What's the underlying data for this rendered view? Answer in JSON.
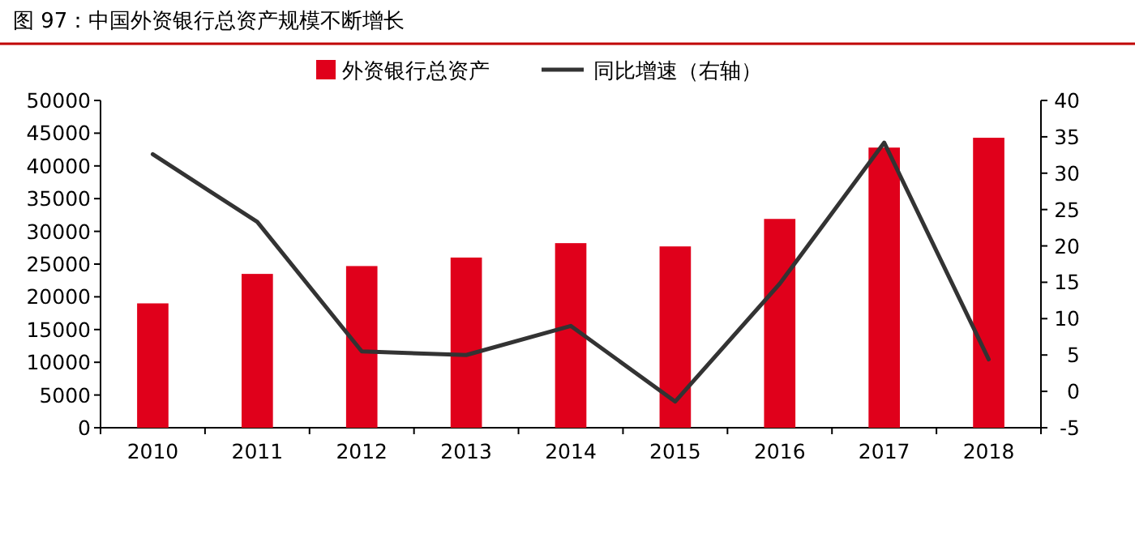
{
  "chart_data": {
    "type": "bar",
    "title": "图 97：中国外资银行总资产规模不断增长",
    "categories": [
      "2010",
      "2011",
      "2012",
      "2013",
      "2014",
      "2015",
      "2016",
      "2017",
      "2018"
    ],
    "series": [
      {
        "name": "外资银行总资产",
        "color": "#e0001b",
        "values": [
          19000,
          23500,
          24700,
          26000,
          28200,
          27700,
          31900,
          42800,
          44300
        ]
      },
      {
        "name": "同比增速（右轴）",
        "color": "#333333",
        "type": "line",
        "axis": "y2",
        "values": [
          32.6,
          23.3,
          5.5,
          5.0,
          9.0,
          -1.4,
          14.8,
          34.2,
          4.4
        ]
      }
    ],
    "ylim": [
      0,
      50000
    ],
    "yticks": [
      0,
      5000,
      10000,
      15000,
      20000,
      25000,
      30000,
      35000,
      40000,
      45000,
      50000
    ],
    "y2lim": [
      -5,
      40
    ],
    "y2ticks": [
      -5,
      0,
      5,
      10,
      15,
      20,
      25,
      30,
      35,
      40
    ],
    "legend": "top",
    "grid": false
  }
}
